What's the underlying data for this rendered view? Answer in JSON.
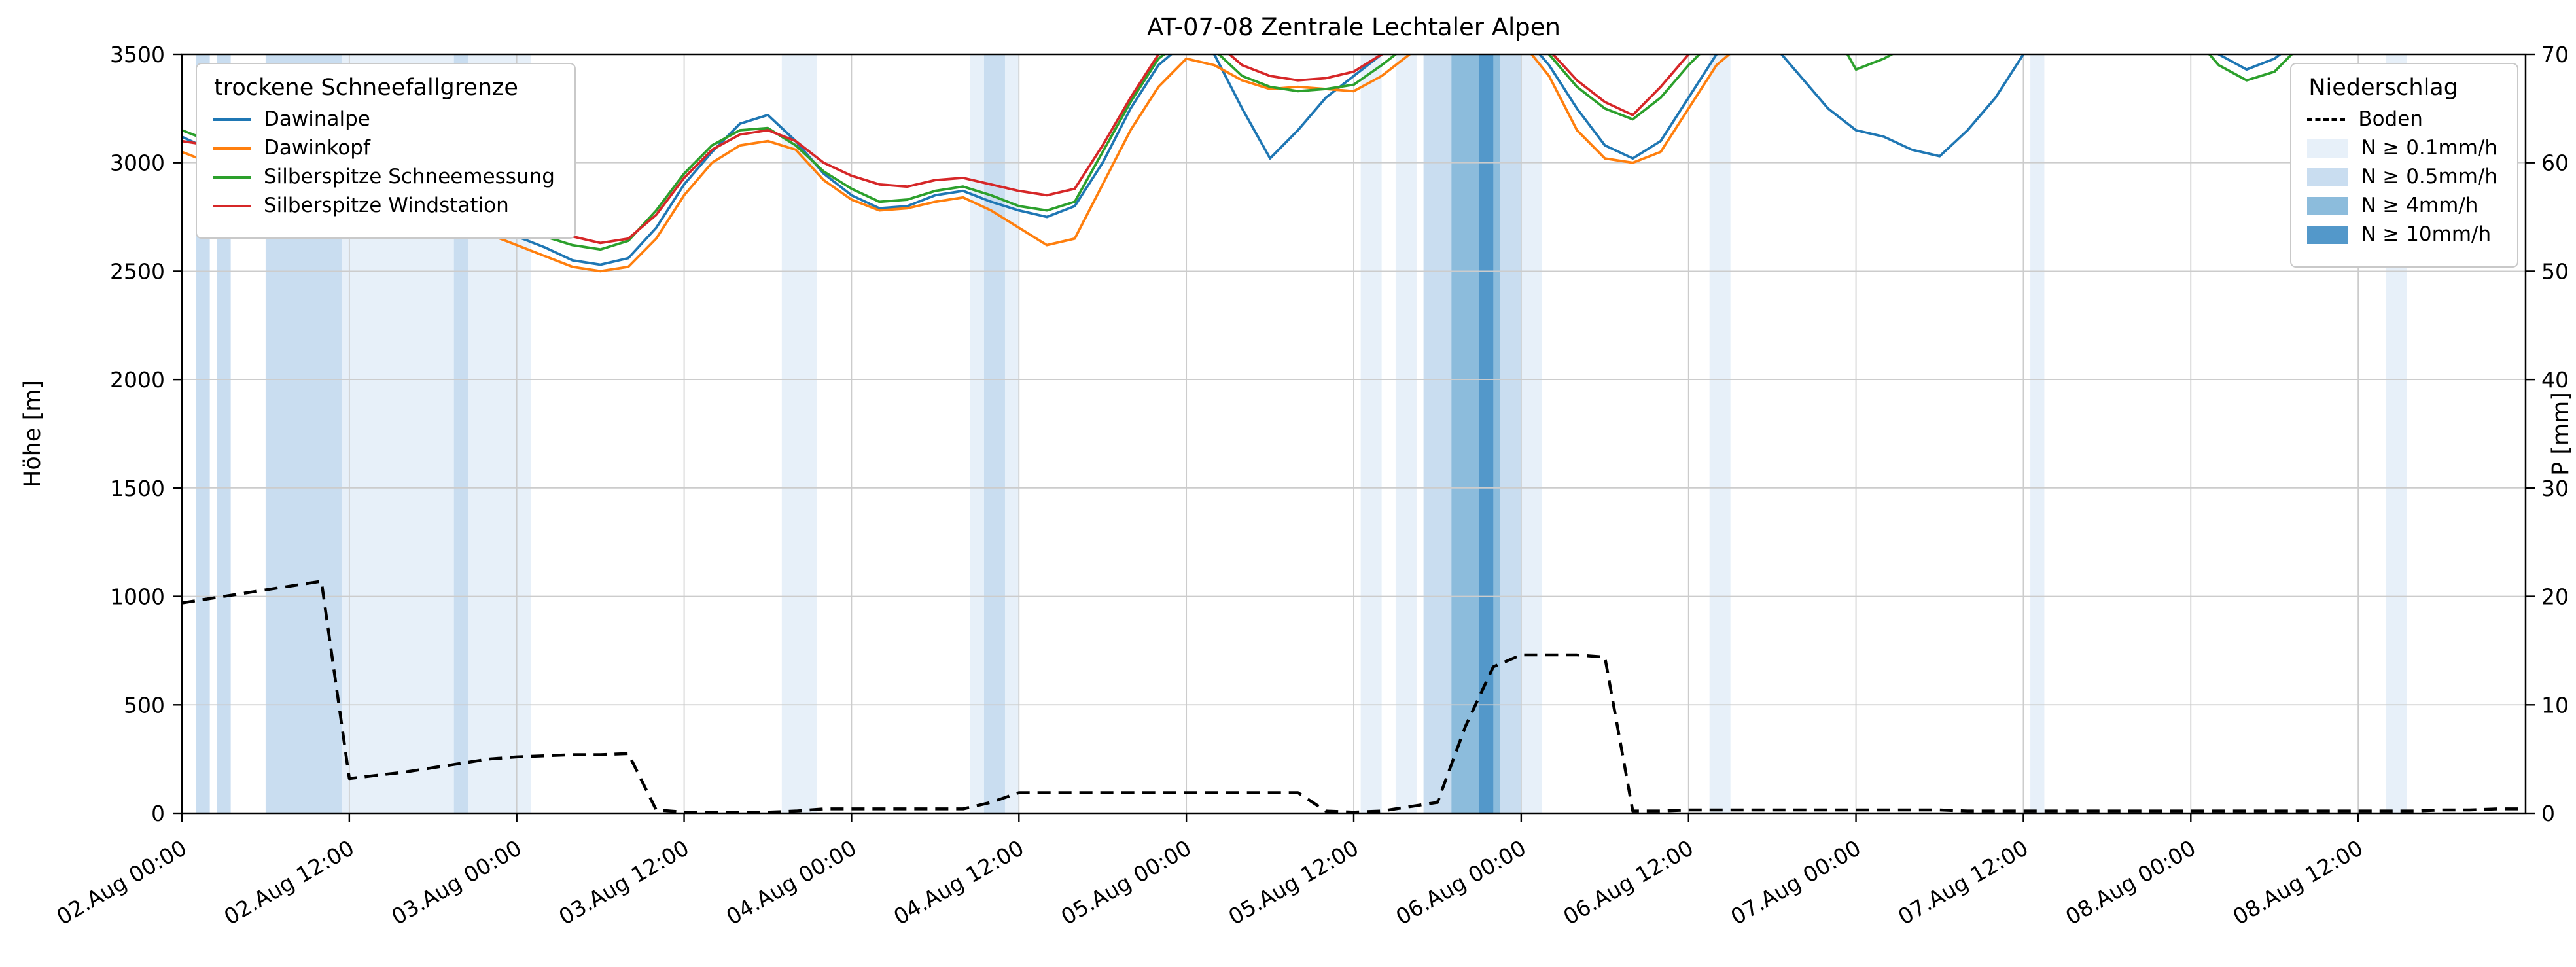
{
  "chart_data": {
    "type": "line",
    "title": "AT-07-08 Zentrale Lechtaler Alpen",
    "grid": true,
    "legend_titles": {
      "snowline": "trockene Schneefallgrenze",
      "precip": "Niederschlag"
    },
    "x_unit": "hours since 02.Aug 00:00",
    "x_range": [
      0,
      168
    ],
    "x_step_hours": 2,
    "x_ticks": [
      {
        "h": 0,
        "label": "02.Aug 00:00"
      },
      {
        "h": 12,
        "label": "02.Aug 12:00"
      },
      {
        "h": 24,
        "label": "03.Aug 00:00"
      },
      {
        "h": 36,
        "label": "03.Aug 12:00"
      },
      {
        "h": 48,
        "label": "04.Aug 00:00"
      },
      {
        "h": 60,
        "label": "04.Aug 12:00"
      },
      {
        "h": 72,
        "label": "05.Aug 00:00"
      },
      {
        "h": 84,
        "label": "05.Aug 12:00"
      },
      {
        "h": 96,
        "label": "06.Aug 00:00"
      },
      {
        "h": 108,
        "label": "06.Aug 12:00"
      },
      {
        "h": 120,
        "label": "07.Aug 00:00"
      },
      {
        "h": 132,
        "label": "07.Aug 12:00"
      },
      {
        "h": 144,
        "label": "08.Aug 00:00"
      },
      {
        "h": 156,
        "label": "08.Aug 12:00"
      }
    ],
    "y_left": {
      "label": "Höhe [m]",
      "range": [
        0,
        3500
      ],
      "ticks": [
        0,
        500,
        1000,
        1500,
        2000,
        2500,
        3000,
        3500
      ]
    },
    "y_right": {
      "label": "P [mm]",
      "range": [
        0,
        70
      ],
      "ticks": [
        0,
        10,
        20,
        30,
        40,
        50,
        60,
        70
      ]
    },
    "series": [
      {
        "name": "Dawinalpe",
        "color": "#1f77b4",
        "values": [
          3120,
          3060,
          2950,
          2840,
          2800,
          2860,
          2900,
          2880,
          2840,
          2800,
          2760,
          2710,
          2660,
          2610,
          2550,
          2530,
          2560,
          2700,
          2900,
          3050,
          3180,
          3220,
          3100,
          2950,
          2850,
          2790,
          2800,
          2850,
          2870,
          2820,
          2780,
          2750,
          2800,
          3000,
          3250,
          3450,
          3560,
          3500,
          3250,
          3020,
          3150,
          3300,
          3400,
          3500,
          3560,
          3620,
          3620,
          3650,
          3600,
          3450,
          3250,
          3080,
          3020,
          3100,
          3300,
          3500,
          3600,
          3550,
          3400,
          3250,
          3150,
          3120,
          3060,
          3030,
          3150,
          3300,
          3500,
          3600,
          3620,
          3640,
          3650,
          3660,
          3640,
          3500,
          3430,
          3480,
          3580,
          3640,
          3660,
          3670,
          3670,
          3680,
          3680,
          3690,
          3690
        ]
      },
      {
        "name": "Dawinkopf",
        "color": "#ff7f0e",
        "values": [
          3050,
          3000,
          2900,
          2800,
          2760,
          2800,
          2850,
          2830,
          2790,
          2750,
          2710,
          2670,
          2620,
          2570,
          2520,
          2500,
          2520,
          2650,
          2850,
          3000,
          3080,
          3100,
          3060,
          2920,
          2830,
          2780,
          2790,
          2820,
          2840,
          2780,
          2700,
          2620,
          2650,
          2900,
          3150,
          3350,
          3480,
          3450,
          3380,
          3340,
          3350,
          3340,
          3330,
          3400,
          3500,
          3580,
          3600,
          3620,
          3560,
          3400,
          3150,
          3020,
          3000,
          3050,
          3250,
          3450,
          3560,
          3600,
          3620,
          3600,
          3580,
          3560,
          3540,
          3550,
          3560,
          3580,
          3600,
          3620,
          3630,
          3640,
          3650,
          3650,
          3660,
          3650,
          3640,
          3650,
          3660,
          3660,
          3670,
          3670,
          3680,
          3680,
          3690,
          3690,
          3700
        ]
      },
      {
        "name": "Silberspitze Schneemessung",
        "color": "#2ca02c",
        "values": [
          3150,
          3100,
          3000,
          2880,
          2820,
          2880,
          2920,
          2900,
          2860,
          2820,
          2790,
          2750,
          2700,
          2660,
          2620,
          2600,
          2640,
          2780,
          2950,
          3080,
          3150,
          3160,
          3080,
          2960,
          2880,
          2820,
          2830,
          2870,
          2890,
          2850,
          2800,
          2780,
          2820,
          3050,
          3280,
          3480,
          3580,
          3520,
          3400,
          3350,
          3330,
          3340,
          3360,
          3450,
          3550,
          3620,
          3630,
          3660,
          3620,
          3500,
          3350,
          3250,
          3200,
          3300,
          3450,
          3580,
          3640,
          3660,
          3670,
          3660,
          3430,
          3480,
          3550,
          3600,
          3620,
          3640,
          3650,
          3660,
          3670,
          3670,
          3670,
          3680,
          3600,
          3450,
          3380,
          3420,
          3550,
          3640,
          3670,
          3680,
          3680,
          3690,
          3690,
          3700,
          3700
        ]
      },
      {
        "name": "Silberspitze Windstation",
        "color": "#d62728",
        "values": [
          3100,
          3080,
          2980,
          2900,
          2860,
          2900,
          2940,
          2930,
          2890,
          2860,
          2830,
          2790,
          2750,
          2700,
          2660,
          2630,
          2650,
          2760,
          2930,
          3060,
          3130,
          3150,
          3100,
          3000,
          2940,
          2900,
          2890,
          2920,
          2930,
          2900,
          2870,
          2850,
          2880,
          3080,
          3300,
          3500,
          3600,
          3560,
          3450,
          3400,
          3380,
          3390,
          3420,
          3500,
          3580,
          3640,
          3650,
          3680,
          3640,
          3520,
          3380,
          3280,
          3220,
          3350,
          3500,
          3600,
          3660,
          3670,
          3680,
          3670,
          3640,
          3620,
          3630,
          3640,
          3650,
          3660,
          3670,
          3670,
          3680,
          3680,
          3680,
          3690,
          3680,
          3670,
          3660,
          3670,
          3680,
          3690,
          3690,
          3690,
          3700,
          3700,
          3700,
          3710,
          3710
        ]
      }
    ],
    "boden": {
      "name": "Boden",
      "color": "#000000",
      "dashed": true,
      "axis": "right",
      "values": [
        19.4,
        19.8,
        20.2,
        20.6,
        21.0,
        21.4,
        3.2,
        3.5,
        3.8,
        4.2,
        4.6,
        5.0,
        5.2,
        5.3,
        5.4,
        5.4,
        5.5,
        0.3,
        0.1,
        0.1,
        0.1,
        0.1,
        0.2,
        0.4,
        0.4,
        0.4,
        0.4,
        0.4,
        0.4,
        1.0,
        1.9,
        1.9,
        1.9,
        1.9,
        1.9,
        1.9,
        1.9,
        1.9,
        1.9,
        1.9,
        1.9,
        0.2,
        0.1,
        0.2,
        0.6,
        1.0,
        8.0,
        13.5,
        14.6,
        14.6,
        14.6,
        14.4,
        0.2,
        0.2,
        0.3,
        0.3,
        0.3,
        0.3,
        0.3,
        0.3,
        0.3,
        0.3,
        0.3,
        0.3,
        0.2,
        0.2,
        0.2,
        0.2,
        0.2,
        0.2,
        0.2,
        0.2,
        0.2,
        0.2,
        0.2,
        0.2,
        0.2,
        0.2,
        0.2,
        0.2,
        0.2,
        0.3,
        0.3,
        0.4,
        0.4
      ]
    },
    "band_levels": [
      {
        "level": "0.1",
        "label": "N ≥ 0.1mm/h",
        "color": "#e7f0f9"
      },
      {
        "level": "0.5",
        "label": "N ≥ 0.5mm/h",
        "color": "#c9ddf0"
      },
      {
        "level": "4",
        "label": "N ≥ 4mm/h",
        "color": "#8cbcdc"
      },
      {
        "level": "10",
        "label": "N ≥ 10mm/h",
        "color": "#5398ca"
      }
    ],
    "precip_bands": [
      {
        "start": 1,
        "end": 2,
        "level": "0.5"
      },
      {
        "start": 2.5,
        "end": 3.5,
        "level": "0.5"
      },
      {
        "start": 6,
        "end": 11.5,
        "level": "0.5"
      },
      {
        "start": 11.5,
        "end": 25,
        "level": "0.1"
      },
      {
        "start": 19.5,
        "end": 20.5,
        "level": "0.5"
      },
      {
        "start": 43,
        "end": 45.5,
        "level": "0.1"
      },
      {
        "start": 56.5,
        "end": 60,
        "level": "0.1"
      },
      {
        "start": 57.5,
        "end": 59,
        "level": "0.5"
      },
      {
        "start": 84.5,
        "end": 86,
        "level": "0.1"
      },
      {
        "start": 87,
        "end": 88.5,
        "level": "0.1"
      },
      {
        "start": 89,
        "end": 91,
        "level": "0.5"
      },
      {
        "start": 91,
        "end": 94.5,
        "level": "4"
      },
      {
        "start": 93,
        "end": 94,
        "level": "10"
      },
      {
        "start": 94.5,
        "end": 96,
        "level": "0.5"
      },
      {
        "start": 96,
        "end": 97.5,
        "level": "0.1"
      },
      {
        "start": 109.5,
        "end": 111,
        "level": "0.1"
      },
      {
        "start": 132.5,
        "end": 133.5,
        "level": "0.1"
      },
      {
        "start": 158,
        "end": 159.5,
        "level": "0.1"
      }
    ]
  }
}
